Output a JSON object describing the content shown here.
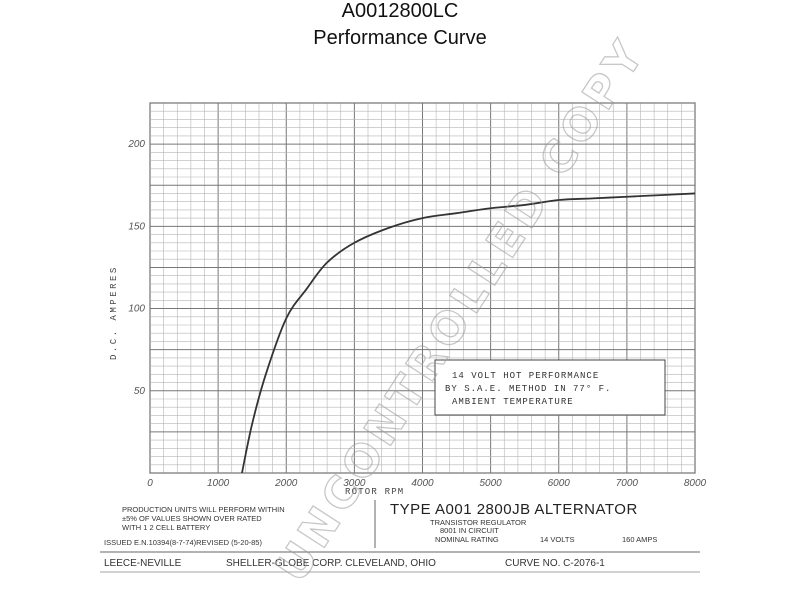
{
  "header": {
    "part_number": "A0012800LC",
    "subtitle": "Performance Curve"
  },
  "chart_data": {
    "type": "line",
    "xlabel": "ROTOR RPM",
    "ylabel": "D.C. AMPERES",
    "xlim": [
      0,
      8000
    ],
    "ylim": [
      0,
      225
    ],
    "x_ticks": [
      "0",
      "1000",
      "2000",
      "3000",
      "4000",
      "5000",
      "6000",
      "7000",
      "8000"
    ],
    "y_ticks": [
      "50",
      "100",
      "150",
      "200"
    ],
    "grid": true,
    "series": [
      {
        "x": [
          1350,
          1500,
          1700,
          2000,
          2300,
          2600,
          3000,
          3500,
          4000,
          4500,
          5000,
          5500,
          6000,
          6500,
          7000,
          7500,
          8000
        ],
        "values": [
          0,
          30,
          60,
          94,
          112,
          128,
          140,
          149,
          155,
          158,
          161,
          163,
          166,
          167,
          168,
          169,
          170
        ]
      }
    ],
    "annotation": [
      "14 VOLT HOT PERFORMANCE",
      "BY S.A.E. METHOD IN 77° F.",
      "AMBIENT TEMPERATURE"
    ]
  },
  "footer": {
    "production_note": [
      "PRODUCTION UNITS WILL PERFORM WITHIN",
      "±5% OF VALUES SHOWN OVER RATED",
      "WITH 1  2  CELL BATTERY"
    ],
    "issued": "ISSUED E.N.10394(8-7-74)REVISED (5-20-85)",
    "type_line": "TYPE  A001 2800JB   ALTERNATOR",
    "regulator": "TRANSISTOR REGULATOR",
    "regulator_model": "8001        IN CIRCUIT",
    "rating_label": "NOMINAL RATING",
    "rating_volts": "14 VOLTS",
    "rating_amps": "160 AMPS",
    "company": "LEECE-NEVILLE",
    "corp": "SHELLER-GLOBE CORP. CLEVELAND, OHIO",
    "curve_no": "CURVE NO. C-2076-1",
    "watermark": "UNCONTROLLED COPY"
  }
}
